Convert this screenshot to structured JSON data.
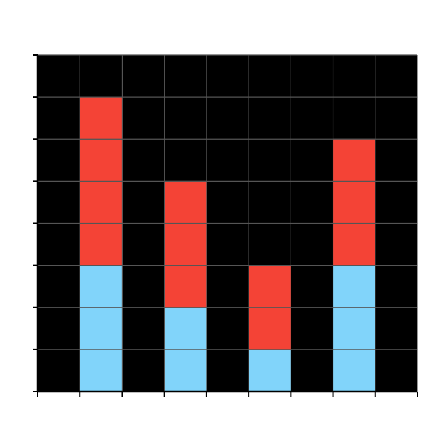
{
  "chart_data": {
    "type": "bar",
    "stacked": true,
    "categories": [
      "",
      "",
      "",
      ""
    ],
    "series": [
      {
        "values": [
          3,
          2,
          1,
          3
        ],
        "color": "#81d4fa"
      },
      {
        "values": [
          4,
          3,
          2,
          3
        ],
        "color": "#f44336"
      }
    ],
    "x_range": [
      0,
      9
    ],
    "bar_slots": [
      1,
      3,
      5,
      7
    ],
    "ylim": [
      0,
      8
    ],
    "grid": true,
    "grid_step": 1,
    "background": "#000000",
    "grid_color": "#555555",
    "axis_color": "#000000",
    "cell_border_color": "#555555"
  }
}
